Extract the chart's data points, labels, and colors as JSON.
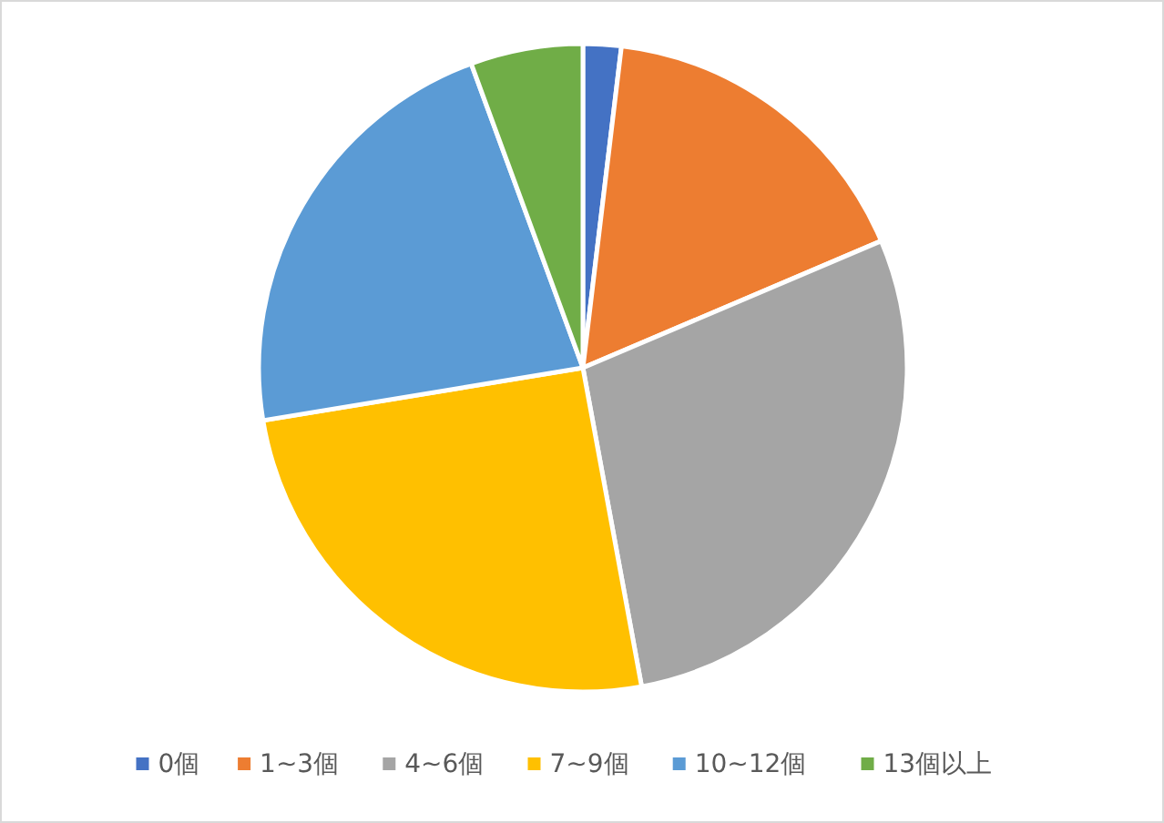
{
  "chart_data": {
    "type": "pie",
    "categories": [
      "0個",
      "1~3個",
      "4~6個",
      "7~9個",
      "10~12個",
      "13個以上"
    ],
    "values": [
      1.9,
      16.7,
      28.5,
      25.3,
      22,
      5.6
    ],
    "colors": [
      "#4472c4",
      "#ed7d31",
      "#a5a5a5",
      "#ffc000",
      "#5b9bd5",
      "#70ad47"
    ],
    "legend": "bottom"
  }
}
